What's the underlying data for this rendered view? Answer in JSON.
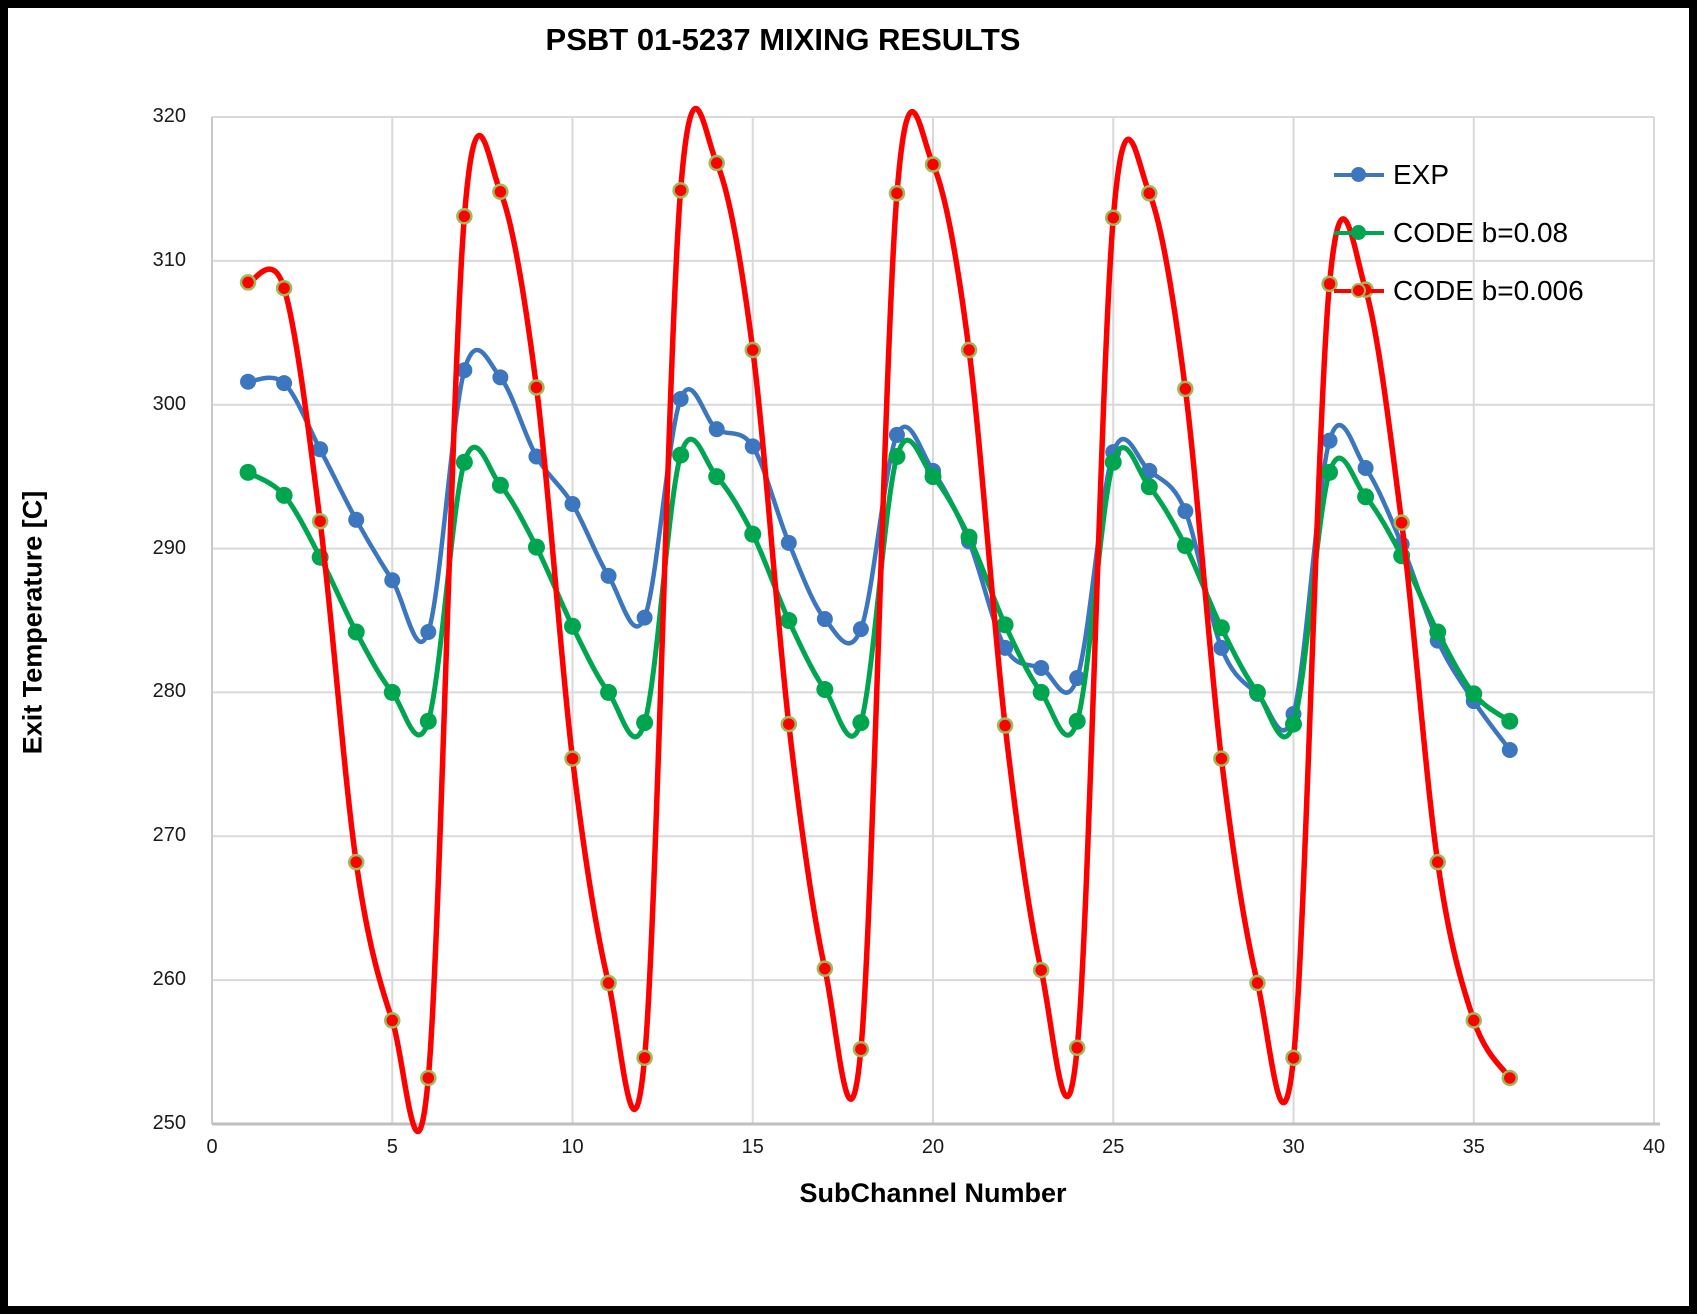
{
  "title": "PSBT 01-5237 MIXING RESULTS",
  "chart_data": {
    "type": "line",
    "title": "PSBT 01-5237 MIXING RESULTS",
    "xlabel": "SubChannel Number",
    "ylabel": "Exit Temperature [C]",
    "xlim": [
      0,
      40
    ],
    "ylim": [
      250,
      320
    ],
    "x_ticks": [
      0,
      5,
      10,
      15,
      20,
      25,
      30,
      35,
      40
    ],
    "y_ticks": [
      250,
      260,
      270,
      280,
      290,
      300,
      310,
      320
    ],
    "grid": true,
    "line_style": "smooth",
    "legend_position": "top-right inside plot area, transparent",
    "x": [
      1,
      2,
      3,
      4,
      5,
      6,
      7,
      8,
      9,
      10,
      11,
      12,
      13,
      14,
      15,
      16,
      17,
      18,
      19,
      20,
      21,
      22,
      23,
      24,
      25,
      26,
      27,
      28,
      29,
      30,
      31,
      32,
      33,
      34,
      35,
      36
    ],
    "series": [
      {
        "name": "EXP",
        "color": "#3B76BE",
        "marker": "circle",
        "marker_radius": 8,
        "values": [
          301.6,
          301.5,
          296.9,
          292.0,
          287.8,
          284.2,
          302.4,
          301.9,
          296.4,
          293.1,
          288.1,
          285.2,
          300.4,
          298.3,
          297.1,
          290.4,
          285.1,
          284.4,
          297.9,
          295.4,
          290.5,
          283.1,
          281.7,
          281.0,
          296.7,
          295.4,
          292.6,
          283.1,
          279.9,
          278.5,
          297.5,
          295.6,
          290.3,
          283.6,
          279.4,
          276.0
        ]
      },
      {
        "name": "CODE b=0.08",
        "color": "#00A64F",
        "marker": "circle",
        "marker_radius": 8.5,
        "values": [
          295.3,
          293.7,
          289.4,
          284.2,
          280.0,
          278.0,
          296.0,
          294.4,
          290.1,
          284.6,
          280.0,
          277.9,
          296.5,
          295.0,
          291.0,
          285.0,
          280.2,
          277.9,
          296.4,
          295.0,
          290.8,
          284.7,
          280.0,
          278.0,
          296.0,
          294.3,
          290.2,
          284.5,
          280.0,
          277.8,
          295.3,
          293.6,
          289.5,
          284.2,
          279.9,
          278.0
        ]
      },
      {
        "name": "CODE b=0.006",
        "color": "#FE0000",
        "marker": "circle",
        "marker_radius": 7,
        "marker_outline": "#9BBB59",
        "values": [
          308.5,
          308.1,
          291.9,
          268.2,
          257.2,
          253.2,
          313.1,
          314.8,
          301.2,
          275.4,
          259.8,
          254.6,
          314.9,
          316.8,
          303.8,
          277.8,
          260.8,
          255.2,
          314.7,
          316.7,
          303.8,
          277.7,
          260.7,
          255.3,
          313.0,
          314.7,
          301.1,
          275.4,
          259.8,
          254.6,
          308.4,
          308.0,
          291.8,
          268.2,
          257.2,
          253.2
        ]
      }
    ]
  },
  "colors": {
    "background": "#FFFFFF",
    "frame": "#000000",
    "gridline": "#D9D9D9",
    "axis_line": "#BFBFBF",
    "text": "#000000"
  }
}
